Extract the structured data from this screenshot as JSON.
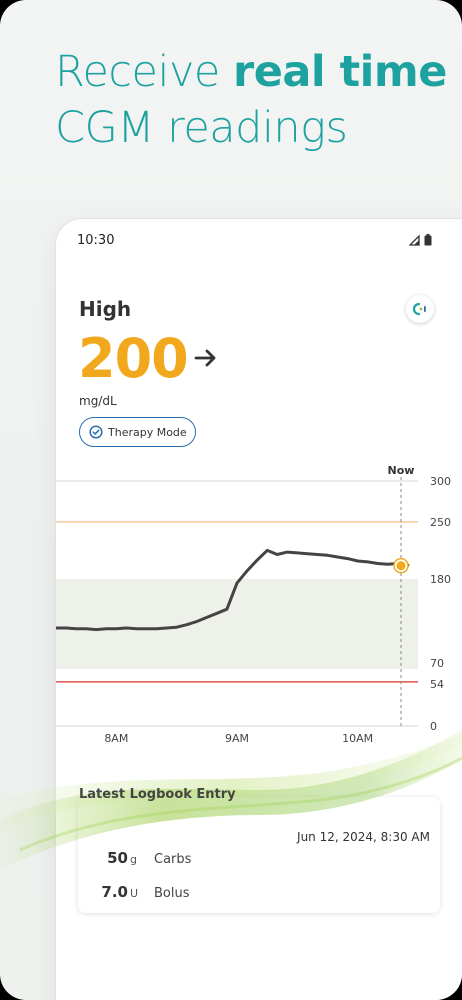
{
  "headline": {
    "normal1": "Receive ",
    "bold": "real time",
    "line2": "CGM readings"
  },
  "status": {
    "time": "10:30"
  },
  "glucose": {
    "label": "High",
    "value": "200",
    "unit": "mg/dL"
  },
  "therapy_mode": {
    "label": "Therapy Mode"
  },
  "colors": {
    "accent": "#1ea2a0",
    "glucose_high": "#f2a81d",
    "target_band": "#eef0ea",
    "low_line": "#e0534a",
    "high_line": "#f5c89a",
    "trace": "#444444"
  },
  "chart_data": {
    "type": "line",
    "now_label": "Now",
    "x_ticks": [
      "8AM",
      "9AM",
      "10AM"
    ],
    "y_ticks": [
      300,
      250,
      180,
      70,
      54,
      0
    ],
    "ylim": [
      0,
      300
    ],
    "target_range": [
      70,
      180
    ],
    "high_threshold": 250,
    "low_threshold": 54,
    "current_value": 200,
    "series": [
      {
        "x": [
          "7:30",
          "7:35",
          "7:40",
          "7:45",
          "7:50",
          "7:55",
          "8:00",
          "8:05",
          "8:10",
          "8:15",
          "8:20",
          "8:25",
          "8:30",
          "8:35",
          "8:40",
          "8:45",
          "8:50",
          "8:55",
          "9:00",
          "9:05",
          "9:10",
          "9:15",
          "9:20",
          "9:25",
          "9:30",
          "9:35",
          "9:40",
          "9:45",
          "9:50",
          "9:55",
          "10:00",
          "10:05",
          "10:10",
          "10:15",
          "10:20",
          "10:25"
        ],
        "values": [
          120,
          120,
          119,
          119,
          118,
          119,
          119,
          120,
          119,
          119,
          119,
          120,
          121,
          124,
          128,
          133,
          138,
          143,
          175,
          190,
          203,
          215,
          210,
          213,
          212,
          211,
          210,
          209,
          207,
          205,
          202,
          201,
          199,
          198,
          199,
          197
        ]
      }
    ]
  },
  "logbook": {
    "title": "Latest Logbook Entry",
    "date": "Jun 12, 2024, 8:30 AM",
    "entries": [
      {
        "value": "50",
        "unit": "g",
        "label": "Carbs"
      },
      {
        "value": "7.0",
        "unit": "U",
        "label": "Bolus"
      }
    ]
  }
}
